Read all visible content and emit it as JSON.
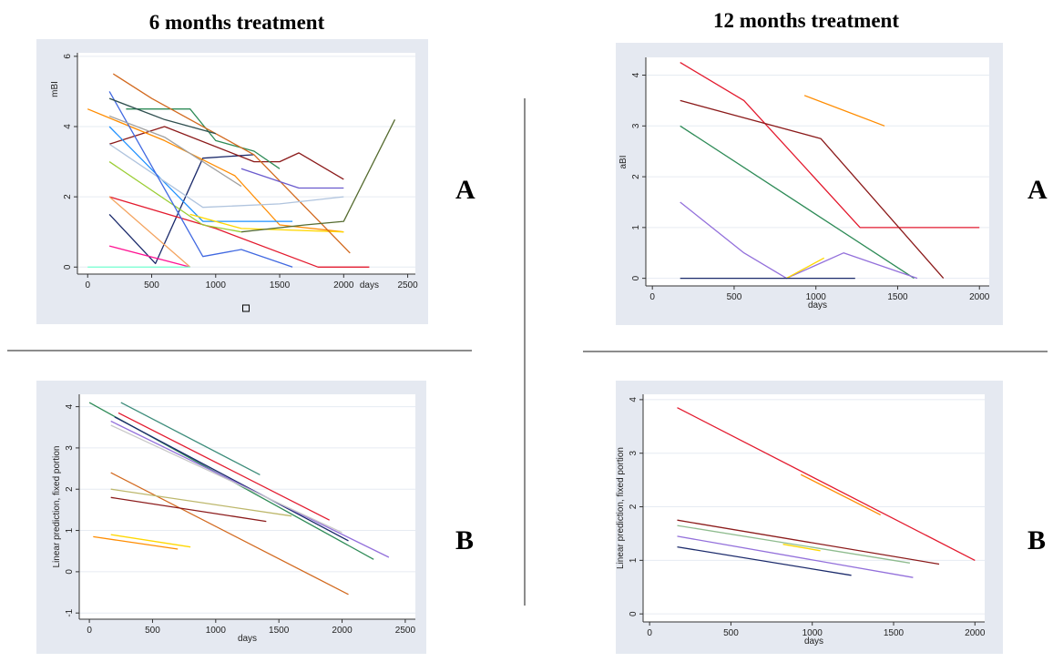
{
  "headings": {
    "left": "6 months treatment",
    "right": "12 months treatment"
  },
  "panel_letters": {
    "tl": "A",
    "tr": "A",
    "bl": "B",
    "br": "B"
  },
  "chart_data": [
    {
      "id": "tl",
      "type": "line",
      "xlabel": "days",
      "ylabel": "mBI",
      "xlim": [
        -80,
        2560
      ],
      "ylim": [
        -0.2,
        6.1
      ],
      "xticks": [
        0,
        500,
        1000,
        1500,
        2000,
        2500
      ],
      "yticks": [
        0,
        2,
        4,
        6
      ],
      "grid": true,
      "xlabel_position": "inline",
      "marker_below_axis": true,
      "series": [
        {
          "color": "#1b2a6b",
          "points": [
            [
              170,
              1.5
            ],
            [
              530,
              0.1
            ],
            [
              900,
              3.1
            ],
            [
              1300,
              3.2
            ]
          ]
        },
        {
          "color": "#e31a2e",
          "points": [
            [
              170,
              2.0
            ],
            [
              1000,
              1.1
            ],
            [
              1800,
              0.0
            ],
            [
              2200,
              0.0
            ]
          ]
        },
        {
          "color": "#8b1a1a",
          "points": [
            [
              170,
              3.5
            ],
            [
              600,
              4.0
            ],
            [
              1300,
              3.0
            ],
            [
              1500,
              3.0
            ],
            [
              1650,
              3.25
            ],
            [
              2000,
              2.5
            ]
          ]
        },
        {
          "color": "#2e8b57",
          "points": [
            [
              300,
              4.5
            ],
            [
              800,
              4.5
            ],
            [
              1000,
              3.6
            ],
            [
              1300,
              3.3
            ],
            [
              1500,
              2.8
            ]
          ]
        },
        {
          "color": "#ff8c00",
          "points": [
            [
              0,
              4.5
            ],
            [
              600,
              3.6
            ],
            [
              1150,
              2.6
            ],
            [
              1500,
              1.2
            ],
            [
              2000,
              1.0
            ]
          ]
        },
        {
          "color": "#1e90ff",
          "points": [
            [
              170,
              4.0
            ],
            [
              900,
              1.3
            ],
            [
              1600,
              1.3
            ]
          ]
        },
        {
          "color": "#ffd700",
          "points": [
            [
              800,
              1.5
            ],
            [
              1200,
              1.1
            ],
            [
              2000,
              1.0
            ]
          ]
        },
        {
          "color": "#d2691e",
          "points": [
            [
              200,
              5.5
            ],
            [
              500,
              4.8
            ],
            [
              1300,
              3.2
            ],
            [
              2050,
              0.4
            ]
          ]
        },
        {
          "color": "#b0c4de",
          "points": [
            [
              170,
              3.5
            ],
            [
              900,
              1.7
            ],
            [
              1500,
              1.8
            ],
            [
              2000,
              2.0
            ]
          ]
        },
        {
          "color": "#6a5acd",
          "points": [
            [
              1200,
              2.8
            ],
            [
              1650,
              2.25
            ],
            [
              2000,
              2.25
            ]
          ]
        },
        {
          "color": "#556b2f",
          "points": [
            [
              1200,
              1.0
            ],
            [
              1700,
              1.2
            ],
            [
              2000,
              1.3
            ],
            [
              2400,
              4.2
            ]
          ]
        },
        {
          "color": "#ff1493",
          "points": [
            [
              170,
              0.6
            ],
            [
              800,
              0.0
            ]
          ]
        },
        {
          "color": "#9acd32",
          "points": [
            [
              170,
              3.0
            ],
            [
              900,
              1.2
            ],
            [
              1200,
              1.0
            ]
          ]
        },
        {
          "color": "#4169e1",
          "points": [
            [
              170,
              5.0
            ],
            [
              900,
              0.3
            ],
            [
              1200,
              0.5
            ],
            [
              1600,
              0.0
            ]
          ]
        },
        {
          "color": "#a0a0a0",
          "points": [
            [
              170,
              4.3
            ],
            [
              600,
              3.7
            ],
            [
              1200,
              2.3
            ]
          ]
        },
        {
          "color": "#2f4f4f",
          "points": [
            [
              170,
              4.8
            ],
            [
              600,
              4.2
            ],
            [
              1000,
              3.8
            ]
          ]
        },
        {
          "color": "#f4a460",
          "points": [
            [
              170,
              2.0
            ],
            [
              800,
              0.0
            ]
          ]
        },
        {
          "color": "#7fffd4",
          "points": [
            [
              0,
              0.0
            ],
            [
              800,
              0.0
            ]
          ]
        }
      ]
    },
    {
      "id": "tr",
      "type": "line",
      "xlabel": "days",
      "ylabel": "aBI",
      "xlim": [
        -40,
        2060
      ],
      "ylim": [
        -0.15,
        4.35
      ],
      "xticks": [
        0,
        500,
        1000,
        1500,
        2000
      ],
      "yticks": [
        0,
        1,
        2,
        3,
        4
      ],
      "grid": true,
      "series": [
        {
          "color": "#e31a2e",
          "points": [
            [
              170,
              4.25
            ],
            [
              560,
              3.5
            ],
            [
              1270,
              1.0
            ],
            [
              2000,
              1.0
            ]
          ]
        },
        {
          "color": "#8b1a1a",
          "points": [
            [
              170,
              3.5
            ],
            [
              1030,
              2.75
            ],
            [
              1780,
              0.0
            ]
          ]
        },
        {
          "color": "#ff8c00",
          "points": [
            [
              930,
              3.6
            ],
            [
              1420,
              3.0
            ]
          ]
        },
        {
          "color": "#2e8b57",
          "points": [
            [
              170,
              3.0
            ],
            [
              1600,
              0.0
            ]
          ]
        },
        {
          "color": "#9370db",
          "points": [
            [
              170,
              1.5
            ],
            [
              560,
              0.5
            ],
            [
              820,
              0.0
            ],
            [
              1170,
              0.5
            ],
            [
              1620,
              0.0
            ]
          ]
        },
        {
          "color": "#ffd700",
          "points": [
            [
              820,
              0.0
            ],
            [
              1050,
              0.4
            ]
          ]
        },
        {
          "color": "#1b2a6b",
          "points": [
            [
              170,
              0.0
            ],
            [
              1240,
              0.0
            ]
          ]
        }
      ]
    },
    {
      "id": "bl",
      "type": "line",
      "xlabel": "days",
      "ylabel": "Linear prediction, fixed portion",
      "xlim": [
        -80,
        2580
      ],
      "ylim": [
        -1.15,
        4.3
      ],
      "xticks": [
        0,
        500,
        1000,
        1500,
        2000,
        2500
      ],
      "yticks": [
        -1,
        0,
        1,
        2,
        3,
        4
      ],
      "grid": true,
      "series": [
        {
          "color": "#2e8b57",
          "points": [
            [
              0,
              4.1
            ],
            [
              2250,
              0.3
            ]
          ]
        },
        {
          "color": "#3c8c7a",
          "points": [
            [
              250,
              4.1
            ],
            [
              1350,
              2.35
            ]
          ]
        },
        {
          "color": "#e31a2e",
          "points": [
            [
              230,
              3.85
            ],
            [
              1900,
              1.25
            ]
          ]
        },
        {
          "color": "#1b2a6b",
          "points": [
            [
              200,
              3.75
            ],
            [
              2050,
              0.75
            ]
          ]
        },
        {
          "color": "#9370db",
          "points": [
            [
              170,
              3.65
            ],
            [
              2370,
              0.35
            ]
          ]
        },
        {
          "color": "#c8c8c8",
          "points": [
            [
              170,
              3.55
            ],
            [
              2000,
              0.95
            ]
          ]
        },
        {
          "color": "#d2691e",
          "points": [
            [
              170,
              2.4
            ],
            [
              2050,
              -0.55
            ]
          ]
        },
        {
          "color": "#8b1a1a",
          "points": [
            [
              170,
              1.8
            ],
            [
              1400,
              1.22
            ]
          ]
        },
        {
          "color": "#bdb76b",
          "points": [
            [
              170,
              2.0
            ],
            [
              1600,
              1.35
            ]
          ]
        },
        {
          "color": "#ffd700",
          "points": [
            [
              170,
              0.9
            ],
            [
              800,
              0.6
            ]
          ]
        },
        {
          "color": "#ff8c00",
          "points": [
            [
              30,
              0.85
            ],
            [
              700,
              0.55
            ]
          ]
        }
      ]
    },
    {
      "id": "br",
      "type": "line",
      "xlabel": "days",
      "ylabel": "Linear prediction, fixed portion",
      "xlim": [
        -40,
        2060
      ],
      "ylim": [
        -0.15,
        4.1
      ],
      "xticks": [
        0,
        500,
        1000,
        1500,
        2000
      ],
      "yticks": [
        0,
        1,
        2,
        3,
        4
      ],
      "grid": true,
      "series": [
        {
          "color": "#e31a2e",
          "points": [
            [
              170,
              3.85
            ],
            [
              2000,
              1.0
            ]
          ]
        },
        {
          "color": "#ff8c00",
          "points": [
            [
              930,
              2.6
            ],
            [
              1420,
              1.85
            ]
          ]
        },
        {
          "color": "#8b1a1a",
          "points": [
            [
              170,
              1.75
            ],
            [
              1780,
              0.93
            ]
          ]
        },
        {
          "color": "#8fbc8f",
          "points": [
            [
              170,
              1.65
            ],
            [
              1600,
              0.95
            ]
          ]
        },
        {
          "color": "#9370db",
          "points": [
            [
              170,
              1.45
            ],
            [
              1620,
              0.68
            ]
          ]
        },
        {
          "color": "#1b2a6b",
          "points": [
            [
              170,
              1.25
            ],
            [
              1240,
              0.72
            ]
          ]
        },
        {
          "color": "#ffd700",
          "points": [
            [
              820,
              1.3
            ],
            [
              1050,
              1.18
            ]
          ]
        }
      ]
    }
  ]
}
